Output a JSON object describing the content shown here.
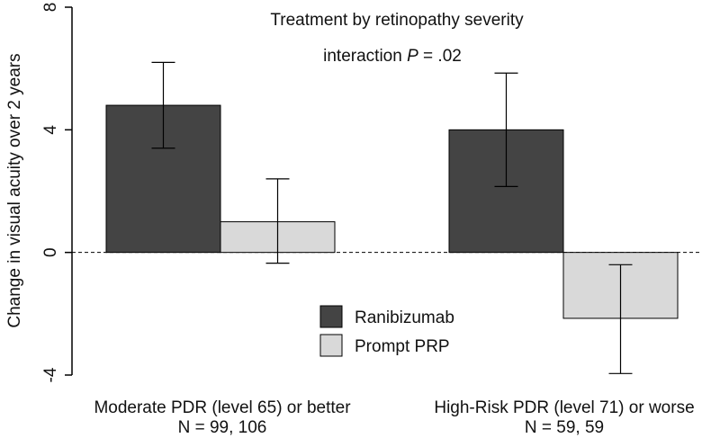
{
  "chart_data": {
    "type": "bar",
    "title_line1": "Treatment by retinopathy severity",
    "title_line2_prefix": "interaction ",
    "title_line2_italic": "P",
    "title_line2_suffix": " = .02",
    "ylabel": "Change in visual acuity over 2 years",
    "xlabel": "",
    "ylim": [
      -4,
      8
    ],
    "yticks": [
      -4,
      0,
      4,
      8
    ],
    "grid": false,
    "reference_line": 0,
    "groups": [
      {
        "label": "Moderate PDR (level 65) or better",
        "n_label": "N = 99, 106"
      },
      {
        "label": "High-Risk PDR (level 71) or worse",
        "n_label": "N = 59, 59"
      }
    ],
    "series": [
      {
        "name": "Ranibizumab",
        "color": "#444444",
        "values": [
          4.8,
          4.0
        ],
        "ci_low": [
          3.4,
          2.15
        ],
        "ci_high": [
          6.2,
          5.85
        ]
      },
      {
        "name": "Prompt PRP",
        "color": "#d9d9d9",
        "values": [
          1.0,
          -2.15
        ],
        "ci_low": [
          -0.35,
          -3.95
        ],
        "ci_high": [
          2.4,
          -0.4
        ]
      }
    ],
    "legend": [
      {
        "label": "Ranibizumab",
        "color": "#444444"
      },
      {
        "label": "Prompt PRP",
        "color": "#d9d9d9"
      }
    ],
    "legend_position": "center-bottom"
  }
}
